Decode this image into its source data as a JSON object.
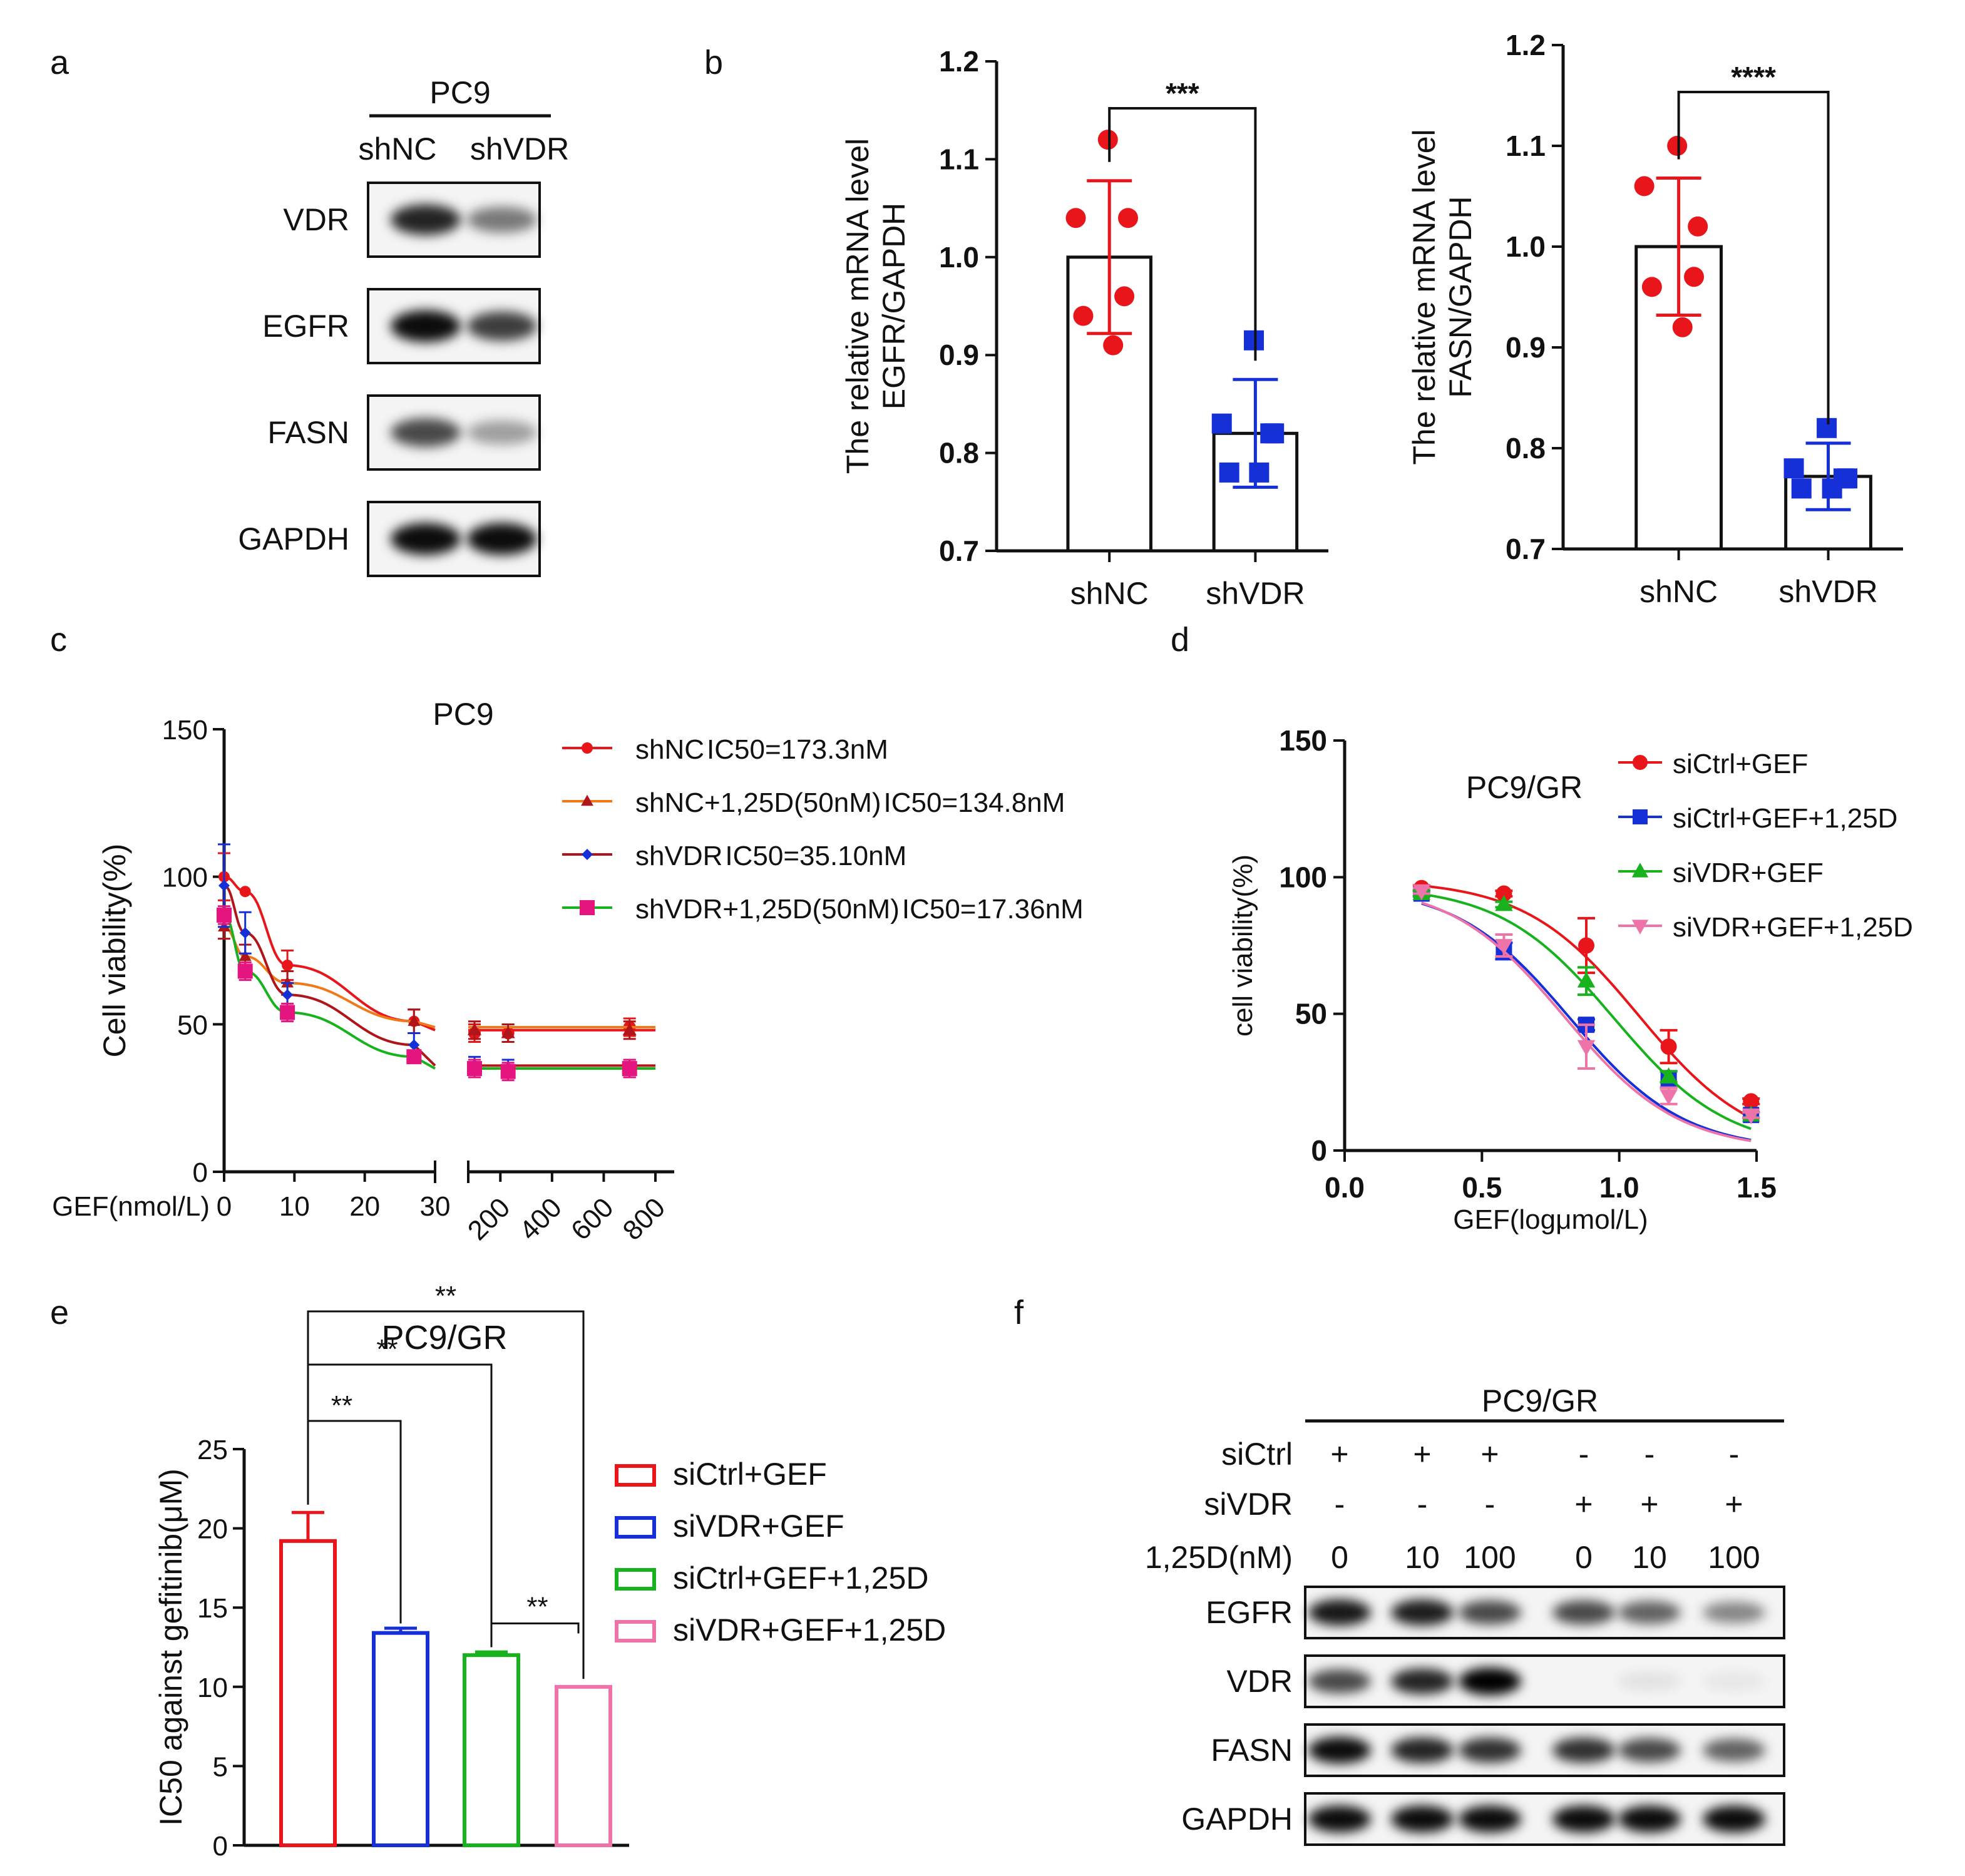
{
  "panel_labels": {
    "a": "a",
    "b": "b",
    "c": "c",
    "d": "d",
    "e": "e",
    "f": "f"
  },
  "colors": {
    "red": "#e8161b",
    "blue": "#1530d6",
    "green": "#18b21e",
    "pink": "#ee73a8",
    "orange": "#f07a1a",
    "darkred": "#b0151a",
    "purple": "#8a1fa0",
    "magenta": "#e5157f",
    "black": "#111111"
  },
  "panel_a": {
    "cell_line": "PC9",
    "lanes": [
      "shNC",
      "shVDR"
    ],
    "blots": [
      {
        "label": "VDR",
        "intensities": [
          0.85,
          0.5
        ]
      },
      {
        "label": "EGFR",
        "intensities": [
          0.95,
          0.75
        ]
      },
      {
        "label": "FASN",
        "intensities": [
          0.7,
          0.35
        ]
      },
      {
        "label": "GAPDH",
        "intensities": [
          0.95,
          0.95
        ]
      }
    ]
  },
  "panel_f": {
    "cell_line": "PC9/GR",
    "row_labels": {
      "sictrl": "siCtrl",
      "sivdr": "siVDR",
      "dose": "1,25D(nM)"
    },
    "sictrl_signs": [
      "+",
      "+",
      "+",
      "-",
      "-",
      "-"
    ],
    "sivdr_signs": [
      "-",
      "-",
      "-",
      "+",
      "+",
      "+"
    ],
    "doses": [
      "0",
      "10",
      "100",
      "0",
      "10",
      "100"
    ],
    "blots": [
      {
        "label": "EGFR",
        "intensities": [
          0.9,
          0.88,
          0.7,
          0.7,
          0.6,
          0.45
        ]
      },
      {
        "label": "VDR",
        "intensities": [
          0.7,
          0.85,
          1.0,
          0.0,
          0.08,
          0.06
        ]
      },
      {
        "label": "FASN",
        "intensities": [
          0.95,
          0.85,
          0.8,
          0.8,
          0.7,
          0.6
        ]
      },
      {
        "label": "GAPDH",
        "intensities": [
          0.95,
          0.95,
          0.95,
          0.95,
          0.95,
          0.95
        ]
      }
    ]
  },
  "chart_data": [
    {
      "id": "b1",
      "type": "bar",
      "ylabel_line1": "The relative mRNA level",
      "ylabel_line2": "EGFR/GAPDH",
      "ylim": [
        0.7,
        1.2
      ],
      "yticks": [
        "0.7",
        "0.8",
        "0.9",
        "1.0",
        "1.1",
        "1.2"
      ],
      "categories": [
        "shNC",
        "shVDR"
      ],
      "values": [
        1.0,
        0.82
      ],
      "errors": [
        0.078,
        0.055
      ],
      "points": [
        [
          1.12,
          1.04,
          1.04,
          0.96,
          0.94,
          0.91
        ],
        [
          0.915,
          0.83,
          0.82,
          0.82,
          0.78,
          0.78
        ]
      ],
      "significance": "***"
    },
    {
      "id": "b2",
      "type": "bar",
      "ylabel_line1": "The relative mRNA level",
      "ylabel_line2": "FASN/GAPDH",
      "ylim": [
        0.7,
        1.2
      ],
      "yticks": [
        "0.7",
        "0.8",
        "0.9",
        "1.0",
        "1.1",
        "1.2"
      ],
      "categories": [
        "shNC",
        "shVDR"
      ],
      "values": [
        1.0,
        0.772
      ],
      "errors": [
        0.068,
        0.033
      ],
      "points": [
        [
          1.1,
          1.06,
          1.02,
          0.97,
          0.96,
          0.92
        ],
        [
          0.82,
          0.78,
          0.77,
          0.77,
          0.76,
          0.76
        ]
      ],
      "significance": "****"
    },
    {
      "id": "c",
      "type": "line",
      "title": "PC9",
      "ylabel": "Cell viability(%)",
      "xlabel": "GEF(nmol/L)",
      "ylim": [
        0,
        150
      ],
      "yticks": [
        "0",
        "50",
        "100",
        "150"
      ],
      "xticks_left": [
        "0",
        "10",
        "20",
        "30"
      ],
      "xticks_right": [
        "200",
        "400",
        "600",
        "800"
      ],
      "series": [
        {
          "name": "shNC",
          "ic50": "IC50=173.3nM",
          "line_color": "#e8161b",
          "ic50_color": "#e8161b",
          "x_left": [
            0,
            3,
            9,
            27
          ],
          "y_left": [
            100,
            95,
            70,
            51
          ],
          "err_left": [
            8,
            0,
            5,
            4
          ],
          "x_right": [
            100,
            230,
            700
          ],
          "y_right": [
            47,
            47,
            49
          ],
          "plateau": 48
        },
        {
          "name": "shNC+1,25D(50nM)",
          "ic50": "IC50=134.8nM",
          "line_color": "#f07a1a",
          "ic50_color": "#8a1fa0",
          "x_left": [
            0,
            3,
            9,
            27
          ],
          "y_left": [
            83,
            73,
            64,
            51
          ],
          "err_left": [
            4,
            4,
            4,
            4
          ],
          "x_right": [
            100,
            230,
            700
          ],
          "y_right": [
            48,
            47,
            48
          ],
          "plateau": 49
        },
        {
          "name": "shVDR",
          "ic50": "IC50=35.10nM",
          "line_color": "#b0151a",
          "ic50_color": "#1530d6",
          "x_left": [
            0,
            3,
            9,
            27
          ],
          "y_left": [
            97,
            81,
            60,
            43
          ],
          "err_left": [
            14,
            7,
            4,
            4
          ],
          "x_right": [
            100,
            230,
            700
          ],
          "y_right": [
            36,
            35,
            35
          ],
          "plateau": 36
        },
        {
          "name": "shVDR+1,25D(50nM)",
          "ic50": "IC50=17.36nM",
          "line_color": "#18b21e",
          "ic50_color": "#e5157f",
          "x_left": [
            0,
            3,
            9,
            27
          ],
          "y_left": [
            87,
            68,
            54,
            39
          ],
          "err_left": [
            3,
            3,
            3,
            2
          ],
          "x_right": [
            100,
            230,
            700
          ],
          "y_right": [
            35,
            34,
            35
          ],
          "plateau": 35
        }
      ]
    },
    {
      "id": "d",
      "type": "line",
      "title": "PC9/GR",
      "ylabel": "cell viability(%)",
      "xlabel": "GEF(logμmol/L)",
      "xlim": [
        0,
        1.5
      ],
      "ylim": [
        0,
        150
      ],
      "xticks": [
        "0.0",
        "0.5",
        "1.0",
        "1.5"
      ],
      "yticks": [
        "0",
        "50",
        "100",
        "150"
      ],
      "series": [
        {
          "name": "siCtrl+GEF",
          "color": "#e8161b",
          "marker": "circle",
          "x": [
            0.28,
            0.58,
            0.88,
            1.18,
            1.48
          ],
          "y": [
            96,
            94,
            75,
            38,
            18
          ],
          "err": [
            1,
            1,
            10,
            6,
            1
          ],
          "logec50": 1.07
        },
        {
          "name": "siCtrl+GEF+1,25D",
          "color": "#1530d6",
          "marker": "square",
          "x": [
            0.28,
            0.58,
            0.88,
            1.18,
            1.48
          ],
          "y": [
            94,
            73,
            46,
            26,
            13
          ],
          "err": [
            1,
            3,
            2,
            3,
            1
          ],
          "logec50": 0.82
        },
        {
          "name": "siVDR+GEF",
          "color": "#18b21e",
          "marker": "triangle",
          "x": [
            0.28,
            0.58,
            0.88,
            1.18,
            1.48
          ],
          "y": [
            94,
            90,
            62,
            27,
            13
          ],
          "err": [
            1,
            1,
            5,
            2,
            1
          ],
          "logec50": 0.98
        },
        {
          "name": "siVDR+GEF+1,25D",
          "color": "#ee73a8",
          "marker": "triangle-down",
          "x": [
            0.28,
            0.58,
            0.88,
            1.18,
            1.48
          ],
          "y": [
            95,
            75,
            38,
            20,
            13
          ],
          "err": [
            1,
            4,
            8,
            3,
            1
          ],
          "logec50": 0.8
        }
      ]
    },
    {
      "id": "e",
      "type": "bar",
      "title": "PC9/GR",
      "ylabel": "IC50 against gefitinib(μM)",
      "ylim": [
        0,
        25
      ],
      "yticks": [
        "0",
        "5",
        "10",
        "15",
        "20",
        "25"
      ],
      "series": [
        {
          "name": "siCtrl+GEF",
          "value": 19.2,
          "error": 1.8,
          "color": "#e8161b"
        },
        {
          "name": "siVDR+GEF",
          "value": 13.4,
          "error": 0.3,
          "color": "#1530d6"
        },
        {
          "name": "siCtrl+GEF+1,25D",
          "value": 12.0,
          "error": 0.2,
          "color": "#18b21e"
        },
        {
          "name": "siVDR+GEF+1,25D",
          "value": 10.0,
          "error": 0.0,
          "color": "#ee73a8"
        }
      ],
      "significance": [
        "**",
        "**",
        "**",
        "**"
      ]
    }
  ]
}
